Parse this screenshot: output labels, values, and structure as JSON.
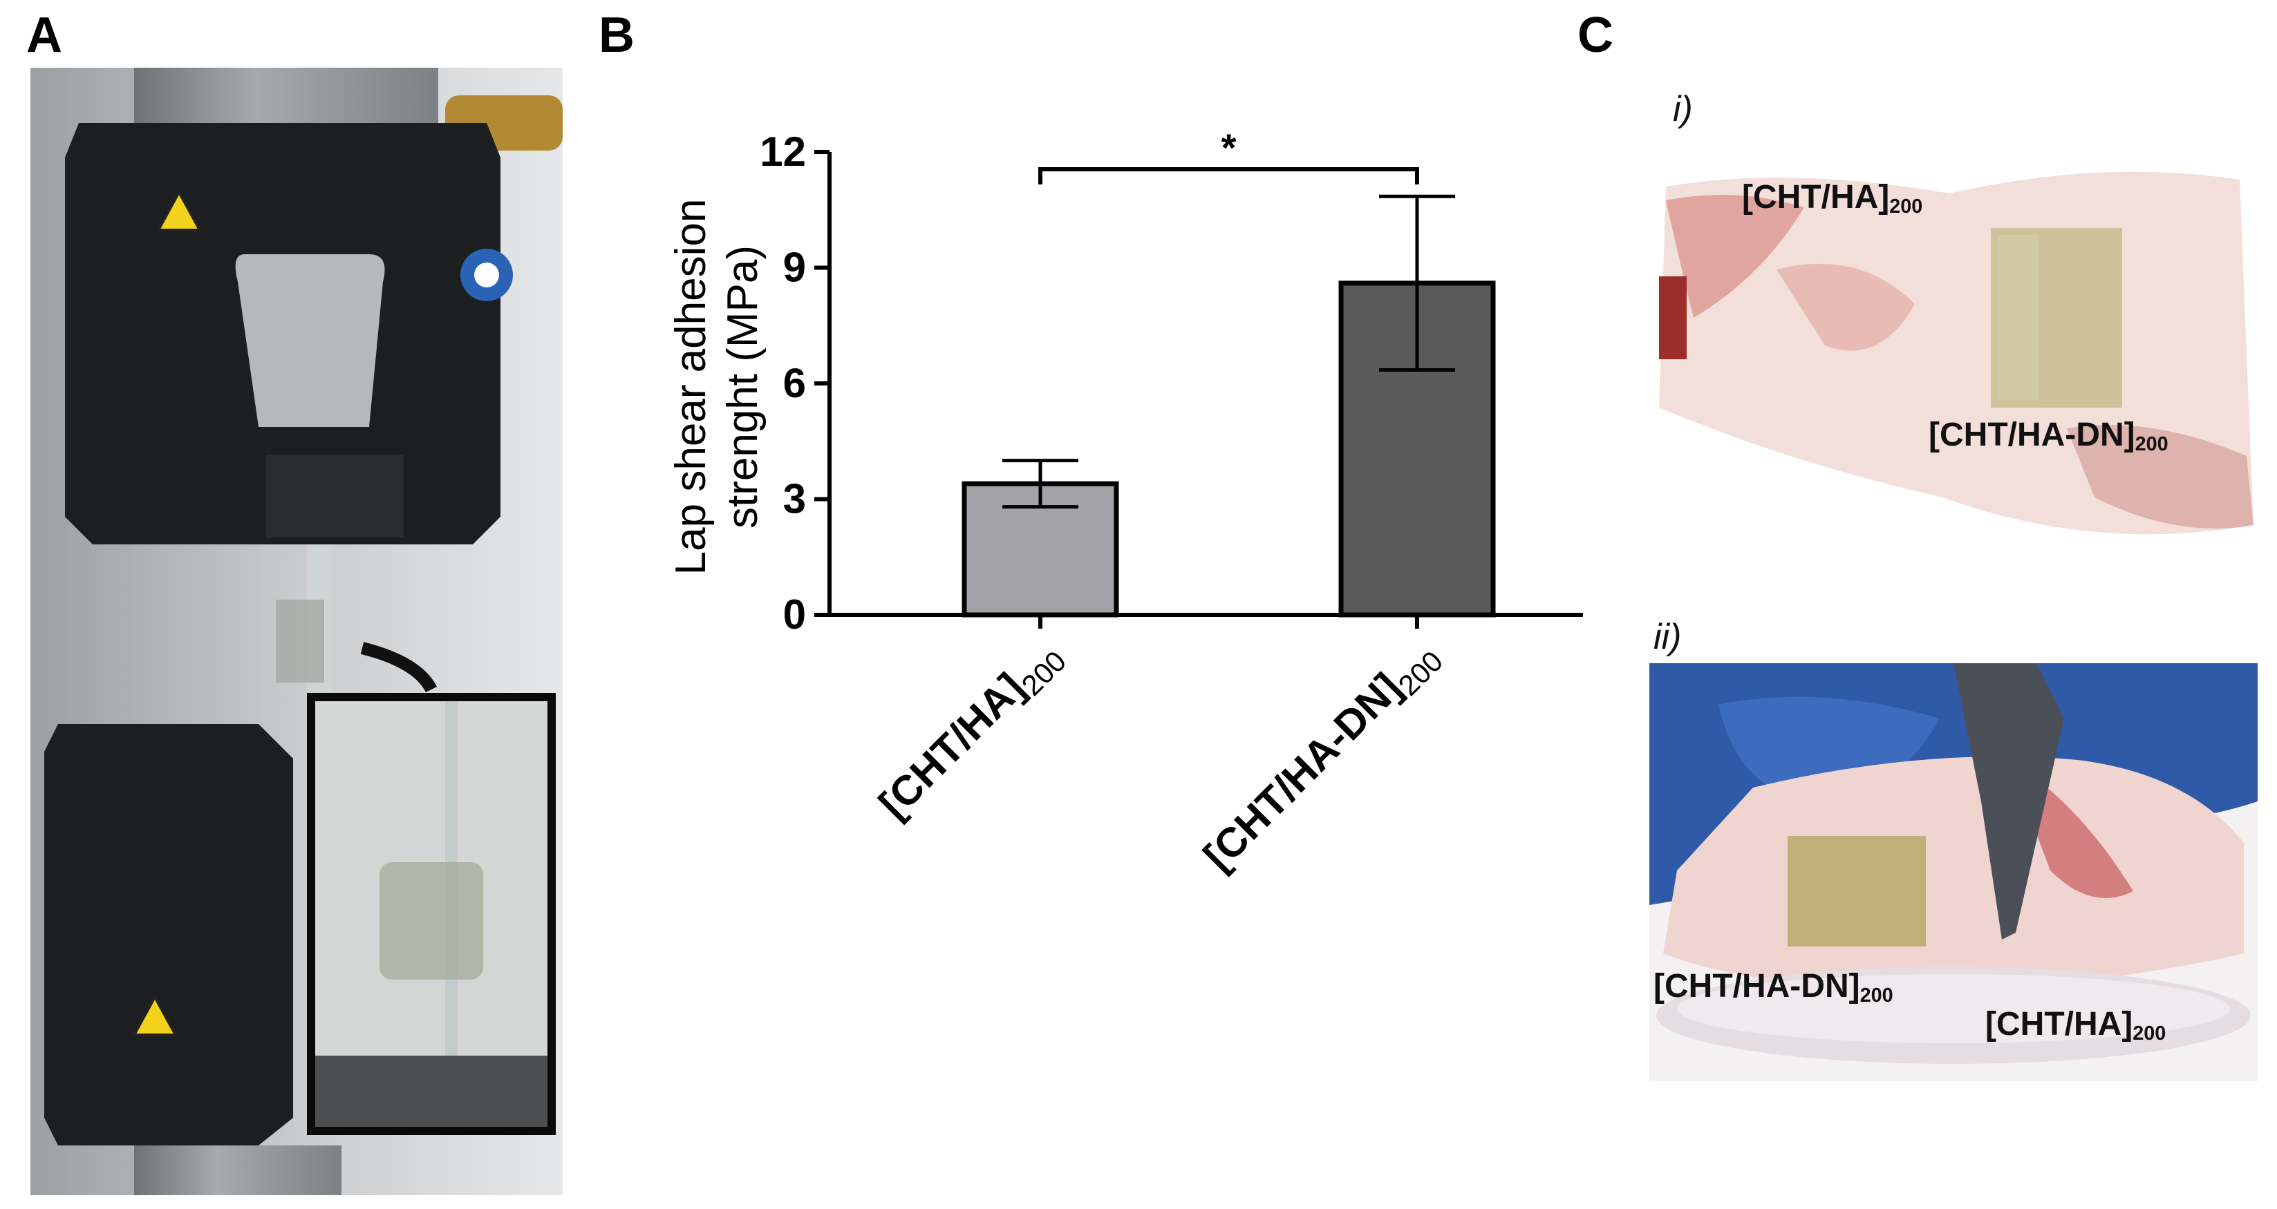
{
  "panels": {
    "a": "A",
    "b": "B",
    "c": "C"
  },
  "panel_c": {
    "sub_i": "i)",
    "sub_ii": "ii)",
    "photo_i_labels": [
      {
        "main": "[CHT/HA]",
        "sub": "200"
      },
      {
        "main": "[CHT/HA-DN]",
        "sub": "200"
      }
    ],
    "photo_ii_labels": [
      {
        "main": "[CHT/HA-DN]",
        "sub": "200"
      },
      {
        "main": "[CHT/HA]",
        "sub": "200"
      }
    ]
  },
  "chart_data": {
    "type": "bar",
    "ylabel_line1": "Lap shear adhesion",
    "ylabel_line2": "strenght (MPa)",
    "ylim": [
      0,
      12
    ],
    "yticks": [
      "0",
      "3",
      "6",
      "9",
      "12"
    ],
    "categories": [
      {
        "main": "[CHT/HA]",
        "sub": "200"
      },
      {
        "main": "[CHT/HA-DN]",
        "sub": "200"
      }
    ],
    "values": [
      3.4,
      8.6
    ],
    "errors_low": [
      2.8,
      6.35
    ],
    "errors_high": [
      4.0,
      10.85
    ],
    "bar_colors": [
      "#a3a3a7",
      "#5a5a5a"
    ],
    "significance": "*"
  }
}
